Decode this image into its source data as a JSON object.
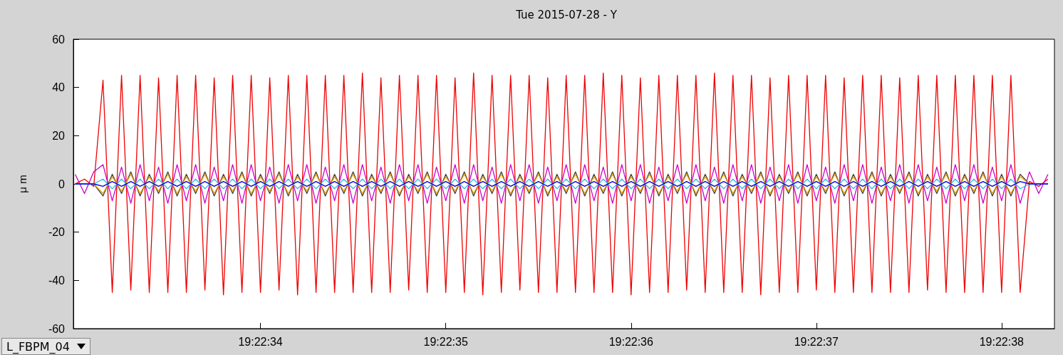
{
  "chart_data": {
    "type": "line",
    "title": "Tue 2015-07-28 - Y",
    "ylabel": "μ m",
    "annotations": [
      "L_FBPM_04"
    ],
    "grid": false,
    "xlim": [
      19.3758306,
      19.3773014
    ],
    "xticks": [
      {
        "value": 19.3761111,
        "label": "19:22:34"
      },
      {
        "value": 19.3763889,
        "label": "19:22:35"
      },
      {
        "value": 19.3766667,
        "label": "19:22:36"
      },
      {
        "value": 19.3769444,
        "label": "19:22:37"
      },
      {
        "value": 19.3772222,
        "label": "19:22:38"
      }
    ],
    "ylim": [
      -60,
      60
    ],
    "yticks": [
      -60,
      -40,
      -20,
      0,
      20,
      40,
      60
    ],
    "x": [
      19.3758333,
      19.3758472,
      19.3758611,
      19.375875,
      19.3758889,
      19.3759028,
      19.3759167,
      19.3759306,
      19.3759444,
      19.3759583,
      19.3759722,
      19.3759861,
      19.376,
      19.3760139,
      19.3760278,
      19.3760417,
      19.3760556,
      19.3760694,
      19.3760833,
      19.3760972,
      19.3761111,
      19.376125,
      19.3761389,
      19.3761528,
      19.3761667,
      19.3761806,
      19.3761944,
      19.3762083,
      19.3762222,
      19.3762361,
      19.37625,
      19.3762639,
      19.3762778,
      19.3762917,
      19.3763056,
      19.3763194,
      19.3763333,
      19.3763472,
      19.3763611,
      19.376375,
      19.3763889,
      19.3764028,
      19.3764167,
      19.3764306,
      19.3764444,
      19.3764583,
      19.3764722,
      19.3764861,
      19.3765,
      19.3765139,
      19.3765278,
      19.3765417,
      19.3765556,
      19.3765694,
      19.3765833,
      19.3765972,
      19.3766111,
      19.376625,
      19.3766389,
      19.3766528,
      19.3766667,
      19.3766806,
      19.3766944,
      19.3767083,
      19.3767222,
      19.3767361,
      19.37675,
      19.3767639,
      19.3767778,
      19.3767917,
      19.3768056,
      19.3768194,
      19.3768333,
      19.3768472,
      19.3768611,
      19.376875,
      19.3768889,
      19.3769028,
      19.3769167,
      19.3769306,
      19.3769444,
      19.3769583,
      19.3769722,
      19.3769861,
      19.377,
      19.3770139,
      19.3770278,
      19.3770417,
      19.3770556,
      19.3770694,
      19.3770833,
      19.3770972,
      19.3771111,
      19.377125,
      19.3771389,
      19.3771528,
      19.3771667,
      19.3771806,
      19.3771944,
      19.3772083,
      19.3772222,
      19.3772361,
      19.37725,
      19.3772639,
      19.3772778,
      19.3772917
    ],
    "series": [
      {
        "color": "#ee0000",
        "values": [
          0,
          2,
          -1,
          43,
          -45,
          45,
          -44,
          45,
          -45,
          44,
          -45,
          45,
          -45,
          45,
          -44,
          44,
          -46,
          45,
          -45,
          45,
          -45,
          44,
          -44,
          45,
          -46,
          45,
          -45,
          45,
          -45,
          45,
          -45,
          46,
          -45,
          44,
          -45,
          45,
          -44,
          45,
          -45,
          45,
          -45,
          44,
          -45,
          46,
          -46,
          45,
          -45,
          45,
          -44,
          45,
          -45,
          44,
          -45,
          45,
          -45,
          45,
          -45,
          46,
          -45,
          45,
          -46,
          44,
          -45,
          45,
          -45,
          45,
          -44,
          45,
          -45,
          46,
          -45,
          45,
          -45,
          45,
          -46,
          44,
          -45,
          45,
          -45,
          45,
          -44,
          45,
          -45,
          44,
          -45,
          45,
          -45,
          45,
          -45,
          44,
          -45,
          45,
          -44,
          45,
          -45,
          45,
          -45,
          45,
          -45,
          45,
          -45,
          45,
          -45,
          1,
          -1,
          2
        ]
      },
      {
        "color": "#cc00cc",
        "values": [
          4,
          -4,
          5,
          8,
          -7,
          7,
          -8,
          8,
          -7,
          7,
          -8,
          8,
          -7,
          8,
          -8,
          7,
          -7,
          8,
          -8,
          8,
          -7,
          7,
          -8,
          8,
          -7,
          8,
          -8,
          7,
          -7,
          8,
          -8,
          8,
          -7,
          7,
          -8,
          8,
          -7,
          8,
          -8,
          7,
          -7,
          8,
          -8,
          8,
          -7,
          7,
          -8,
          8,
          -7,
          8,
          -8,
          7,
          -7,
          8,
          -8,
          8,
          -7,
          7,
          -8,
          8,
          -7,
          8,
          -8,
          7,
          -7,
          8,
          -8,
          8,
          -7,
          7,
          -8,
          8,
          -7,
          8,
          -8,
          7,
          -7,
          8,
          -8,
          8,
          -7,
          7,
          -8,
          8,
          -7,
          8,
          -8,
          7,
          -7,
          8,
          -8,
          8,
          -7,
          7,
          -8,
          8,
          -7,
          8,
          -8,
          7,
          -7,
          8,
          -8,
          5,
          -4,
          4
        ]
      },
      {
        "color": "#404040",
        "values": [
          0,
          0,
          0,
          -5,
          4,
          -4,
          5,
          -5,
          4,
          -4,
          5,
          -5,
          4,
          -4,
          5,
          -5,
          4,
          -4,
          5,
          -5,
          4,
          -4,
          5,
          -5,
          4,
          -4,
          5,
          -5,
          4,
          -4,
          5,
          -5,
          4,
          -4,
          5,
          -5,
          4,
          -4,
          5,
          -5,
          4,
          -4,
          5,
          -5,
          4,
          -4,
          5,
          -5,
          4,
          -4,
          5,
          -5,
          4,
          -4,
          5,
          -5,
          4,
          -4,
          5,
          -5,
          4,
          -4,
          5,
          -5,
          4,
          -4,
          5,
          -5,
          4,
          -4,
          5,
          -5,
          4,
          -4,
          5,
          -5,
          4,
          -4,
          5,
          -5,
          4,
          -4,
          5,
          -5,
          4,
          -4,
          5,
          -5,
          4,
          -4,
          5,
          -5,
          4,
          -4,
          5,
          -5,
          4,
          -4,
          5,
          -5,
          4,
          -5,
          4,
          0,
          0,
          0
        ]
      },
      {
        "color": "#e8a000",
        "values": [
          0,
          0,
          0,
          -4,
          3,
          -3,
          4,
          -4,
          3,
          -3,
          4,
          -4,
          3,
          -3,
          4,
          -4,
          3,
          -3,
          4,
          -4,
          3,
          -3,
          4,
          -4,
          3,
          -3,
          4,
          -4,
          3,
          -3,
          4,
          -4,
          3,
          -3,
          4,
          -4,
          3,
          -3,
          4,
          -4,
          3,
          -3,
          4,
          -4,
          3,
          -3,
          4,
          -4,
          3,
          -3,
          4,
          -4,
          3,
          -3,
          4,
          -4,
          3,
          -3,
          4,
          -4,
          3,
          -3,
          4,
          -4,
          3,
          -3,
          4,
          -4,
          3,
          -3,
          4,
          -4,
          3,
          -3,
          4,
          -4,
          3,
          -3,
          4,
          -4,
          3,
          -3,
          4,
          -4,
          3,
          -3,
          4,
          -4,
          3,
          -3,
          4,
          -4,
          3,
          -3,
          4,
          -4,
          3,
          -3,
          4,
          -4,
          3,
          -4,
          3,
          0,
          0,
          0
        ]
      },
      {
        "color": "#33bbdd",
        "values": [
          0,
          0,
          0,
          2,
          -2,
          2,
          -2,
          2,
          -2,
          2,
          -2,
          2,
          -2,
          2,
          -2,
          2,
          -2,
          2,
          -2,
          2,
          -2,
          2,
          -2,
          2,
          -2,
          2,
          -2,
          2,
          -2,
          2,
          -2,
          2,
          -2,
          2,
          -2,
          2,
          -2,
          2,
          -2,
          2,
          -2,
          2,
          -2,
          2,
          -2,
          2,
          -2,
          2,
          -2,
          2,
          -2,
          2,
          -2,
          2,
          -2,
          2,
          -2,
          2,
          -2,
          2,
          -2,
          2,
          -2,
          2,
          -2,
          2,
          -2,
          2,
          -2,
          2,
          -2,
          2,
          -2,
          2,
          -2,
          2,
          -2,
          2,
          -2,
          2,
          -2,
          2,
          -2,
          2,
          -2,
          2,
          -2,
          2,
          -2,
          2,
          -2,
          2,
          -2,
          2,
          -2,
          2,
          -2,
          2,
          -2,
          2,
          -2,
          2,
          -2,
          0,
          0,
          0
        ]
      },
      {
        "color": "#0000ee",
        "values": [
          0,
          0,
          0,
          -1,
          1,
          -1,
          1,
          -1,
          1,
          -1,
          1,
          -1,
          1,
          -1,
          1,
          -1,
          1,
          -1,
          1,
          -1,
          1,
          -1,
          1,
          -1,
          1,
          -1,
          1,
          -1,
          1,
          -1,
          1,
          -1,
          1,
          -1,
          1,
          -1,
          1,
          -1,
          1,
          -1,
          1,
          -1,
          1,
          -1,
          1,
          -1,
          1,
          -1,
          1,
          -1,
          1,
          -1,
          1,
          -1,
          1,
          -1,
          1,
          -1,
          1,
          -1,
          1,
          -1,
          1,
          -1,
          1,
          -1,
          1,
          -1,
          1,
          -1,
          1,
          -1,
          1,
          -1,
          1,
          -1,
          1,
          -1,
          1,
          -1,
          1,
          -1,
          1,
          -1,
          1,
          -1,
          1,
          -1,
          1,
          -1,
          1,
          -1,
          1,
          -1,
          1,
          -1,
          1,
          -1,
          1,
          -1,
          1,
          -1,
          1,
          0,
          0,
          0
        ]
      }
    ]
  }
}
